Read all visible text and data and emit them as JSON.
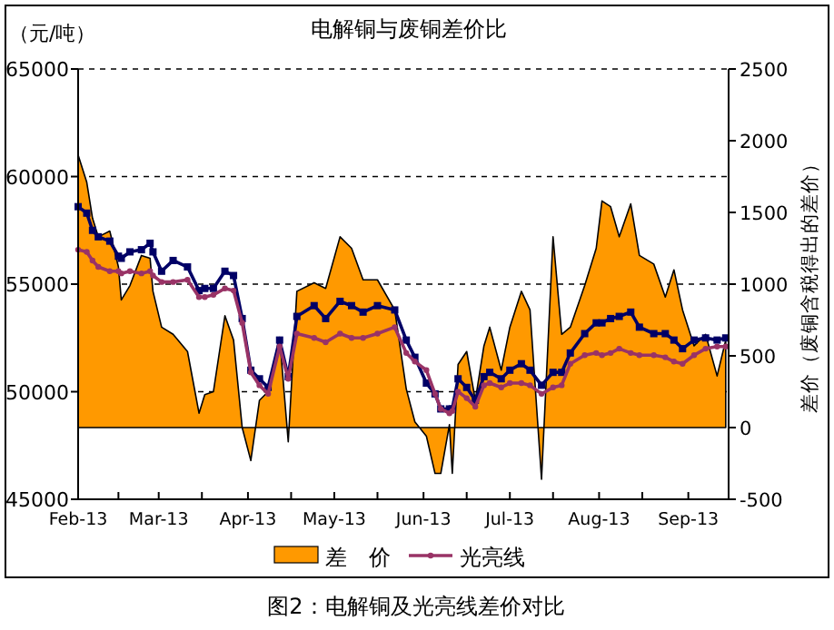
{
  "chart_data": {
    "type": "line",
    "title": "电解铜与废铜差价比",
    "ylabel": "（元/吨）",
    "y2label": "差价（废铜含税得出的差价）",
    "annotations": [
      "图2：电解铜及光亮线差价对比"
    ],
    "x": [
      "2013-02-01",
      "2013-02-04",
      "2013-02-06",
      "2013-02-08",
      "2013-02-12",
      "2013-02-15",
      "2013-02-16",
      "2013-02-19",
      "2013-02-23",
      "2013-02-26",
      "2013-02-27",
      "2013-03-02",
      "2013-03-06",
      "2013-03-11",
      "2013-03-15",
      "2013-03-17",
      "2013-03-20",
      "2013-03-24",
      "2013-03-27",
      "2013-03-30",
      "2013-04-02",
      "2013-04-05",
      "2013-04-08",
      "2013-04-12",
      "2013-04-15",
      "2013-04-18",
      "2013-04-24",
      "2013-04-28",
      "2013-05-03",
      "2013-05-07",
      "2013-05-11",
      "2013-05-16",
      "2013-05-22",
      "2013-05-26",
      "2013-05-29",
      "2013-06-02",
      "2013-06-05",
      "2013-06-07",
      "2013-06-10",
      "2013-06-11",
      "2013-06-13",
      "2013-06-16",
      "2013-06-19",
      "2013-06-22",
      "2013-06-24",
      "2013-06-28",
      "2013-07-01",
      "2013-07-05",
      "2013-07-08",
      "2013-07-12",
      "2013-07-16",
      "2013-07-19",
      "2013-07-22",
      "2013-07-27",
      "2013-07-31",
      "2013-08-02",
      "2013-08-05",
      "2013-08-08",
      "2013-08-12",
      "2013-08-15",
      "2013-08-20",
      "2013-08-24",
      "2013-08-27",
      "2013-08-30",
      "2013-09-03",
      "2013-09-07",
      "2013-09-11",
      "2013-09-14"
    ],
    "series": [
      {
        "name": "差　价",
        "type": "area",
        "axis": "y2",
        "color": "#ff9900",
        "values": [
          1900,
          1710,
          1460,
          1330,
          1370,
          1120,
          890,
          990,
          1200,
          1180,
          950,
          700,
          650,
          530,
          100,
          230,
          250,
          780,
          610,
          0,
          -230,
          190,
          250,
          630,
          -100,
          950,
          1010,
          970,
          1330,
          1250,
          1030,
          1030,
          820,
          270,
          40,
          -60,
          -320,
          -320,
          20,
          -320,
          440,
          530,
          190,
          570,
          700,
          400,
          700,
          950,
          820,
          -360,
          1330,
          650,
          700,
          990,
          1250,
          1580,
          1540,
          1330,
          1560,
          1200,
          1140,
          910,
          1100,
          820,
          570,
          650,
          360,
          610
        ]
      },
      {
        "name": null,
        "color": "#000066",
        "marker": "square",
        "values": [
          58600,
          58300,
          57500,
          57200,
          57000,
          56300,
          56200,
          56500,
          56600,
          56900,
          56500,
          55600,
          56100,
          55800,
          54700,
          54800,
          54800,
          55600,
          55400,
          53400,
          51000,
          50600,
          50200,
          52400,
          50700,
          53500,
          54000,
          53400,
          54200,
          54000,
          53700,
          54000,
          53800,
          52400,
          51600,
          50400,
          49900,
          49200,
          49200,
          49200,
          50600,
          50200,
          49600,
          50700,
          50900,
          50600,
          51000,
          51300,
          51000,
          50300,
          50900,
          50900,
          51800,
          52700,
          53200,
          53200,
          53400,
          53500,
          53700,
          53000,
          52700,
          52700,
          52400,
          52000,
          52400,
          52500,
          52400,
          52500
        ]
      },
      {
        "name": "光亮线",
        "color": "#993366",
        "marker": "circle",
        "values": [
          56600,
          56500,
          56100,
          55800,
          55600,
          55600,
          55500,
          55600,
          55500,
          55600,
          55400,
          55100,
          55100,
          55200,
          54400,
          54400,
          54500,
          54800,
          54700,
          53200,
          50900,
          50300,
          49900,
          52100,
          50600,
          52700,
          52500,
          52300,
          52700,
          52500,
          52500,
          52700,
          53000,
          51800,
          51400,
          51000,
          49900,
          49200,
          49000,
          49100,
          50000,
          49700,
          49300,
          50300,
          50400,
          50200,
          50400,
          50400,
          50300,
          49900,
          50200,
          50300,
          51300,
          51700,
          51800,
          51700,
          51800,
          52000,
          51800,
          51700,
          51700,
          51600,
          51400,
          51300,
          51700,
          52000,
          52100,
          52100
        ]
      }
    ],
    "xlim": [
      "2013-02-01",
      "2013-09-15"
    ],
    "xticks": [
      {
        "value": "2013-02-01",
        "label": "Feb-13"
      },
      {
        "value": "2013-02-15",
        "label": null
      },
      {
        "value": "2013-03-01",
        "label": "Mar-13"
      },
      {
        "value": "2013-03-16",
        "label": null
      },
      {
        "value": "2013-04-01",
        "label": "Apr-13"
      },
      {
        "value": "2013-04-16",
        "label": null
      },
      {
        "value": "2013-05-01",
        "label": "May-13"
      },
      {
        "value": "2013-05-16",
        "label": null
      },
      {
        "value": "2013-06-01",
        "label": "Jun-13"
      },
      {
        "value": "2013-06-16",
        "label": null
      },
      {
        "value": "2013-07-01",
        "label": "Jul-13"
      },
      {
        "value": "2013-07-16",
        "label": null
      },
      {
        "value": "2013-08-01",
        "label": "Aug-13"
      },
      {
        "value": "2013-08-16",
        "label": null
      },
      {
        "value": "2013-09-01",
        "label": "Sep-13"
      }
    ],
    "ylim": [
      45000,
      65000
    ],
    "yticks": [
      45000,
      50000,
      55000,
      60000,
      65000
    ],
    "y2lim": [
      -500,
      2500
    ],
    "y2ticks": [
      -500,
      0,
      500,
      1000,
      1500,
      2000,
      2500
    ],
    "grid": "y",
    "legend": "bottom"
  }
}
